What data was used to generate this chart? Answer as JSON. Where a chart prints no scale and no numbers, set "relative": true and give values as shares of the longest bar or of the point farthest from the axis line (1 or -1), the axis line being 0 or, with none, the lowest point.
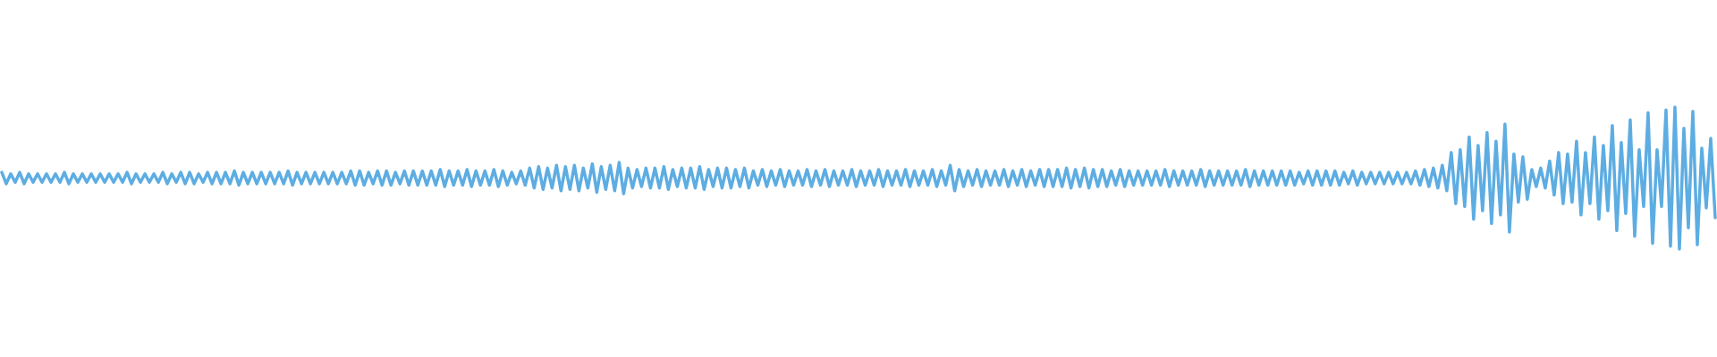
{
  "chart_data": {
    "type": "line",
    "relative": true,
    "color": "#5dade2",
    "categories": [
      null,
      null,
      null,
      null,
      null,
      null,
      null,
      null,
      null,
      null,
      null,
      null,
      null,
      null,
      null,
      null,
      null,
      null,
      null,
      null,
      null,
      null,
      null,
      null,
      null,
      null,
      null,
      null,
      null,
      null,
      null,
      null,
      null,
      null,
      null,
      null,
      null,
      null,
      null,
      null,
      null,
      null,
      null,
      null,
      null,
      null,
      null,
      null,
      null,
      null,
      null,
      null,
      null,
      null,
      null,
      null,
      null,
      null,
      null,
      null,
      null,
      null,
      null,
      null,
      null,
      null,
      null,
      null,
      null,
      null,
      null,
      null,
      null,
      null,
      null,
      null,
      null,
      null,
      null,
      null,
      null,
      null,
      null,
      null,
      null,
      null,
      null,
      null,
      null,
      null,
      null,
      null,
      null,
      null,
      null,
      null,
      null,
      null,
      null,
      null,
      null,
      null,
      null,
      null,
      null,
      null,
      null,
      null,
      null,
      null,
      null,
      null,
      null,
      null,
      null,
      null,
      null,
      null,
      null,
      null,
      null,
      null,
      null,
      null,
      null,
      null,
      null,
      null,
      null,
      null,
      null,
      null,
      null,
      null,
      null,
      null,
      null,
      null,
      null,
      null,
      null,
      null,
      null,
      null,
      null,
      null,
      null,
      null,
      null,
      null,
      null,
      null,
      null,
      null,
      null,
      null,
      null,
      null,
      null,
      null,
      null,
      null,
      null,
      null,
      null,
      null,
      null,
      null,
      null,
      null,
      null,
      null,
      null,
      null,
      null,
      null,
      null,
      null,
      null,
      null,
      null,
      null,
      null,
      null,
      null,
      null,
      null,
      null,
      null,
      null,
      null,
      null,
      null,
      null,
      null,
      null,
      null,
      null,
      null,
      null,
      null,
      null,
      null,
      null,
      null,
      null,
      null,
      null,
      null,
      null,
      null,
      null,
      null,
      null,
      null,
      null,
      null,
      null,
      null,
      null,
      null,
      null,
      null,
      null,
      null,
      null,
      null,
      null,
      null,
      null,
      null,
      null,
      null,
      null,
      null,
      null,
      null,
      null,
      null,
      null,
      null,
      null,
      null,
      null,
      null,
      null,
      null,
      null,
      null,
      null,
      null,
      null,
      null,
      null,
      null,
      null,
      null,
      null,
      null,
      null,
      null,
      null,
      null,
      null,
      null,
      null,
      null,
      null,
      null,
      null,
      null,
      null,
      null,
      null,
      null,
      null,
      null,
      null,
      null,
      null,
      null,
      null,
      null,
      null,
      null,
      null,
      null,
      null,
      null,
      null,
      null,
      null,
      null,
      null,
      null,
      null,
      null,
      null,
      null,
      null,
      null,
      null,
      null,
      null,
      null,
      null,
      null,
      null,
      null,
      null,
      null,
      null,
      null,
      null,
      null,
      null,
      null,
      null,
      null,
      null,
      null,
      null,
      null,
      null,
      null,
      null,
      null,
      null,
      null,
      null,
      null,
      null,
      null,
      null,
      null,
      null,
      null,
      null,
      null,
      null,
      null,
      null,
      null,
      null,
      null,
      null,
      null,
      null,
      null,
      null,
      null,
      null,
      null,
      null,
      null,
      null,
      null,
      null,
      null,
      null,
      null,
      null,
      null,
      null,
      null,
      null,
      null,
      null,
      null,
      null,
      null,
      null,
      null,
      null,
      null,
      null,
      null,
      null,
      null,
      null,
      null,
      null,
      null,
      null
    ],
    "values": [
      0.54,
      0.46,
      0.53,
      0.47,
      0.54,
      0.46,
      0.53,
      0.47,
      0.53,
      0.47,
      0.53,
      0.47,
      0.53,
      0.47,
      0.54,
      0.46,
      0.53,
      0.47,
      0.53,
      0.47,
      0.53,
      0.47,
      0.53,
      0.47,
      0.53,
      0.47,
      0.53,
      0.47,
      0.54,
      0.46,
      0.53,
      0.47,
      0.53,
      0.47,
      0.53,
      0.47,
      0.54,
      0.46,
      0.53,
      0.47,
      0.54,
      0.46,
      0.54,
      0.46,
      0.53,
      0.47,
      0.54,
      0.46,
      0.54,
      0.46,
      0.54,
      0.46,
      0.55,
      0.45,
      0.54,
      0.46,
      0.54,
      0.46,
      0.54,
      0.46,
      0.54,
      0.46,
      0.54,
      0.46,
      0.55,
      0.45,
      0.54,
      0.46,
      0.54,
      0.46,
      0.54,
      0.46,
      0.54,
      0.46,
      0.54,
      0.46,
      0.54,
      0.46,
      0.55,
      0.45,
      0.55,
      0.45,
      0.54,
      0.46,
      0.55,
      0.45,
      0.55,
      0.45,
      0.54,
      0.46,
      0.55,
      0.45,
      0.55,
      0.45,
      0.55,
      0.45,
      0.55,
      0.45,
      0.56,
      0.44,
      0.55,
      0.45,
      0.55,
      0.45,
      0.56,
      0.44,
      0.55,
      0.45,
      0.55,
      0.45,
      0.56,
      0.44,
      0.55,
      0.45,
      0.54,
      0.46,
      0.55,
      0.45,
      0.57,
      0.43,
      0.58,
      0.42,
      0.57,
      0.43,
      0.59,
      0.41,
      0.58,
      0.42,
      0.59,
      0.41,
      0.57,
      0.43,
      0.6,
      0.4,
      0.58,
      0.42,
      0.59,
      0.41,
      0.61,
      0.39,
      0.57,
      0.43,
      0.56,
      0.44,
      0.57,
      0.43,
      0.57,
      0.43,
      0.58,
      0.42,
      0.56,
      0.44,
      0.57,
      0.43,
      0.57,
      0.43,
      0.58,
      0.42,
      0.56,
      0.44,
      0.57,
      0.43,
      0.57,
      0.43,
      0.56,
      0.44,
      0.57,
      0.43,
      0.55,
      0.45,
      0.56,
      0.44,
      0.55,
      0.45,
      0.56,
      0.44,
      0.55,
      0.45,
      0.55,
      0.45,
      0.56,
      0.44,
      0.55,
      0.45,
      0.56,
      0.44,
      0.55,
      0.45,
      0.55,
      0.45,
      0.56,
      0.44,
      0.55,
      0.45,
      0.55,
      0.45,
      0.56,
      0.44,
      0.55,
      0.45,
      0.55,
      0.45,
      0.56,
      0.44,
      0.55,
      0.45,
      0.55,
      0.45,
      0.56,
      0.44,
      0.55,
      0.45,
      0.59,
      0.41,
      0.56,
      0.44,
      0.55,
      0.45,
      0.56,
      0.44,
      0.55,
      0.45,
      0.55,
      0.45,
      0.56,
      0.44,
      0.55,
      0.45,
      0.56,
      0.44,
      0.55,
      0.45,
      0.56,
      0.44,
      0.56,
      0.44,
      0.56,
      0.44,
      0.57,
      0.43,
      0.56,
      0.44,
      0.57,
      0.43,
      0.56,
      0.44,
      0.56,
      0.44,
      0.55,
      0.45,
      0.56,
      0.44,
      0.55,
      0.45,
      0.55,
      0.45,
      0.55,
      0.45,
      0.55,
      0.45,
      0.56,
      0.44,
      0.55,
      0.45,
      0.55,
      0.45,
      0.55,
      0.45,
      0.56,
      0.44,
      0.55,
      0.45,
      0.55,
      0.45,
      0.55,
      0.45,
      0.55,
      0.45,
      0.56,
      0.44,
      0.55,
      0.45,
      0.55,
      0.45,
      0.55,
      0.45,
      0.55,
      0.45,
      0.55,
      0.45,
      0.54,
      0.46,
      0.55,
      0.45,
      0.55,
      0.45,
      0.55,
      0.45,
      0.55,
      0.45,
      0.54,
      0.46,
      0.55,
      0.45,
      0.54,
      0.46,
      0.54,
      0.46,
      0.54,
      0.46,
      0.54,
      0.46,
      0.54,
      0.46,
      0.54,
      0.46,
      0.55,
      0.45,
      0.56,
      0.44,
      0.57,
      0.43,
      0.59,
      0.41,
      0.68,
      0.32,
      0.7,
      0.3,
      0.79,
      0.21,
      0.73,
      0.27,
      0.82,
      0.18,
      0.76,
      0.24,
      0.88,
      0.12,
      0.67,
      0.33,
      0.65,
      0.35,
      0.56,
      0.44,
      0.57,
      0.43,
      0.62,
      0.38,
      0.68,
      0.32,
      0.67,
      0.33,
      0.76,
      0.24,
      0.68,
      0.32,
      0.79,
      0.21,
      0.73,
      0.27,
      0.87,
      0.13,
      0.75,
      0.25,
      0.91,
      0.09,
      0.7,
      0.3,
      0.96,
      0.04,
      0.7,
      0.3,
      0.98,
      0.02,
      1,
      0,
      0.85,
      0.15,
      0.97,
      0.03,
      0.71,
      0.29,
      0.78,
      0.22
    ]
  }
}
